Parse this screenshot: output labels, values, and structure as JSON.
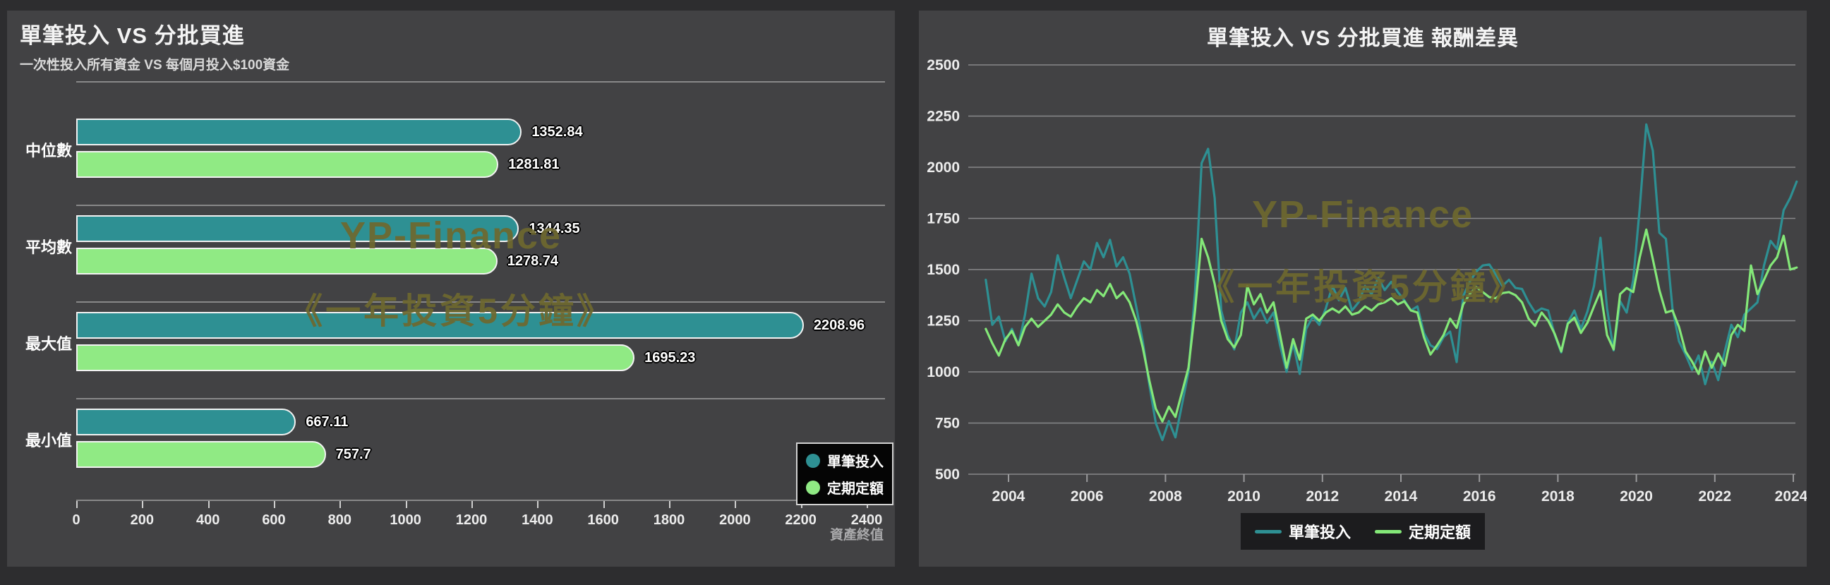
{
  "page": {
    "background": "#2d2d2f",
    "panel_background": "#424244",
    "gridline_color": "#87888a",
    "rule_color": "#a0a0a0"
  },
  "watermark": {
    "line1": "YP-Finance",
    "line2": "《一年投資5分鐘》",
    "color": "#6e682f"
  },
  "chart_data": [
    {
      "type": "bar",
      "orientation": "horizontal",
      "title": "單筆投入 VS 分批買進",
      "subtitle": "一次性投入所有資金 VS 每個月投入$100資金",
      "xlabel": "資產終值",
      "ylabel": "",
      "categories": [
        "中位數",
        "平均數",
        "最大值",
        "最小值"
      ],
      "series": [
        {
          "name": "單筆投入",
          "color": "#2e9093",
          "values": [
            1352.84,
            1344.35,
            2208.96,
            667.11
          ]
        },
        {
          "name": "定期定額",
          "color": "#90ea84",
          "values": [
            1281.81,
            1278.74,
            1695.23,
            757.7
          ]
        }
      ],
      "xlim": [
        0,
        2400
      ],
      "xtick_step": 200,
      "xticks": [
        0,
        200,
        400,
        600,
        800,
        1000,
        1200,
        1400,
        1600,
        1800,
        2000,
        2200,
        2400
      ],
      "grid": "category-separators",
      "legend_position": "inside-bottom-right",
      "legend_background": "#050505",
      "legend_border": "#d2d2d2",
      "bar_outline": "#f2f2f2",
      "value_labels": true
    },
    {
      "type": "line",
      "title": "單筆投入 VS 分批買進 報酬差異",
      "xlabel": "",
      "ylabel": "",
      "ylim": [
        450,
        2560
      ],
      "yticks": [
        500,
        750,
        1000,
        1250,
        1500,
        1750,
        2000,
        2250,
        2500
      ],
      "xticks": [
        2004,
        2006,
        2008,
        2010,
        2012,
        2014,
        2016,
        2018,
        2020,
        2022,
        2024
      ],
      "grid": "horizontal",
      "legend_position": "bottom-center",
      "legend_background": "#1c1c1e",
      "x_start": 2003.42,
      "x_step": 0.16667,
      "x_unit": "year (monthly rolling samples, approx.)",
      "series": [
        {
          "name": "單筆投入",
          "color": "#2e9093",
          "values": [
            1450,
            1230,
            1270,
            1150,
            1210,
            1130,
            1280,
            1480,
            1360,
            1320,
            1390,
            1570,
            1460,
            1360,
            1450,
            1540,
            1500,
            1630,
            1560,
            1645,
            1515,
            1560,
            1480,
            1320,
            1150,
            940,
            750,
            667,
            760,
            680,
            840,
            1000,
            1390,
            2020,
            2090,
            1850,
            1300,
            1180,
            1110,
            1290,
            1340,
            1260,
            1310,
            1240,
            1290,
            1130,
            1000,
            1140,
            990,
            1210,
            1270,
            1230,
            1310,
            1420,
            1350,
            1410,
            1300,
            1340,
            1420,
            1380,
            1460,
            1400,
            1440,
            1390,
            1350,
            1300,
            1320,
            1190,
            1130,
            1111,
            1170,
            1197,
            1048,
            1370,
            1440,
            1490,
            1520,
            1525,
            1475,
            1420,
            1450,
            1410,
            1405,
            1340,
            1290,
            1310,
            1300,
            1180,
            1095,
            1240,
            1300,
            1210,
            1295,
            1420,
            1655,
            1310,
            1105,
            1345,
            1290,
            1450,
            1800,
            2209,
            2080,
            1680,
            1650,
            1310,
            1150,
            1085,
            1010,
            1080,
            940,
            1050,
            960,
            1100,
            1230,
            1170,
            1280,
            1310,
            1340,
            1520,
            1640,
            1600,
            1790,
            1850,
            1930
          ]
        },
        {
          "name": "定期定額",
          "color": "#84e878",
          "values": [
            1210,
            1140,
            1080,
            1160,
            1200,
            1130,
            1220,
            1260,
            1220,
            1250,
            1280,
            1330,
            1290,
            1270,
            1320,
            1360,
            1340,
            1400,
            1370,
            1430,
            1360,
            1390,
            1340,
            1250,
            1120,
            960,
            820,
            758,
            830,
            780,
            900,
            1020,
            1300,
            1650,
            1560,
            1430,
            1250,
            1160,
            1120,
            1180,
            1420,
            1330,
            1380,
            1290,
            1340,
            1180,
            1020,
            1160,
            1060,
            1260,
            1280,
            1250,
            1290,
            1310,
            1290,
            1320,
            1280,
            1290,
            1320,
            1300,
            1330,
            1340,
            1360,
            1330,
            1345,
            1300,
            1290,
            1170,
            1085,
            1130,
            1180,
            1260,
            1215,
            1330,
            1380,
            1415,
            1390,
            1365,
            1360,
            1385,
            1390,
            1375,
            1340,
            1260,
            1225,
            1290,
            1250,
            1185,
            1100,
            1235,
            1265,
            1190,
            1240,
            1320,
            1395,
            1180,
            1110,
            1380,
            1410,
            1390,
            1560,
            1695,
            1550,
            1400,
            1290,
            1300,
            1220,
            1100,
            1050,
            990,
            1100,
            1020,
            1090,
            1030,
            1180,
            1230,
            1200,
            1520,
            1380,
            1450,
            1520,
            1560,
            1665,
            1500,
            1510
          ]
        }
      ]
    }
  ]
}
